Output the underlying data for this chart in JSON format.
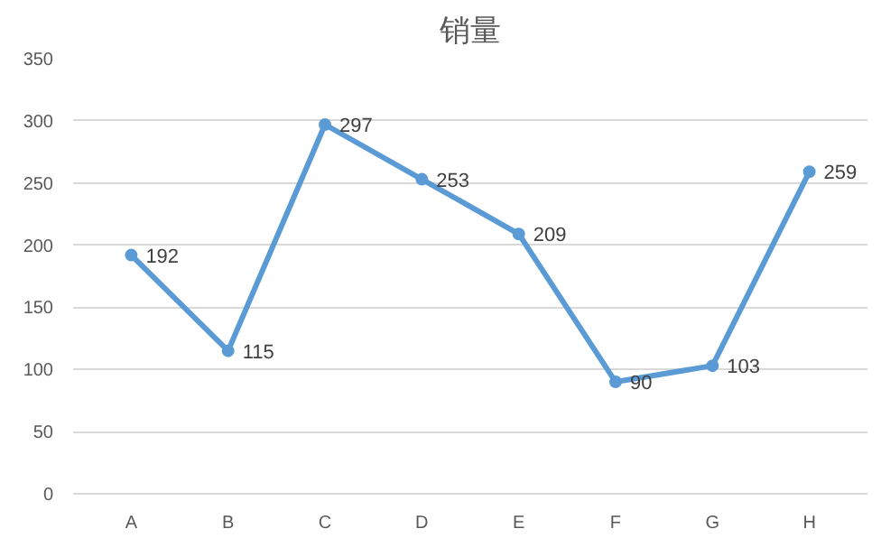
{
  "chart_data": {
    "type": "line",
    "title": "销量",
    "categories": [
      "A",
      "B",
      "C",
      "D",
      "E",
      "F",
      "G",
      "H"
    ],
    "series": [
      {
        "color": "#5b9bd5",
        "values": [
          192,
          115,
          297,
          253,
          209,
          90,
          103,
          259
        ]
      }
    ],
    "ylim": [
      0,
      350
    ],
    "yticks": [
      0,
      50,
      100,
      150,
      200,
      250,
      300,
      350
    ],
    "grid": "y",
    "marker": "circle",
    "line_style": "solid",
    "data_labels": true
  }
}
